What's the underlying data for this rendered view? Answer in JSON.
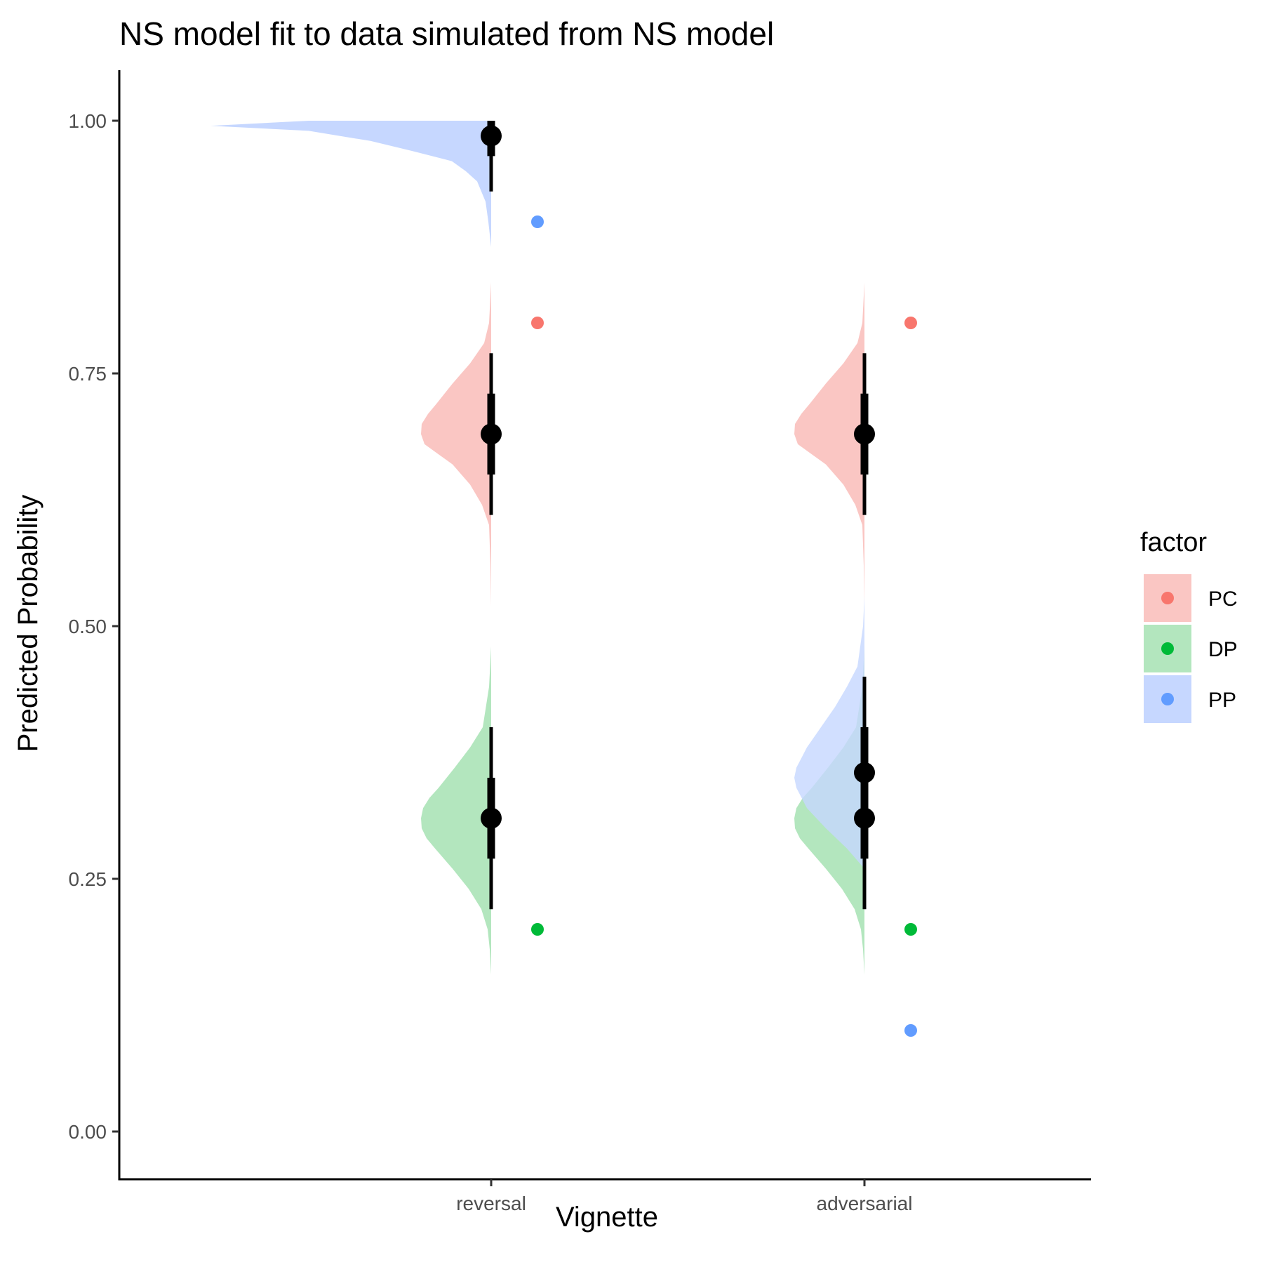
{
  "chart_data": {
    "type": "violin",
    "title": "NS model fit to data simulated from NS model",
    "xlabel": "Vignette",
    "ylabel": "Predicted Probability",
    "categories": [
      "reversal",
      "adversarial"
    ],
    "ylim": [
      -0.05,
      1.05
    ],
    "yticks": [
      0.0,
      0.25,
      0.5,
      0.75,
      1.0
    ],
    "ytick_labels": [
      "0.00",
      "0.25",
      "0.50",
      "0.75",
      "1.00"
    ],
    "grid": false,
    "legend": {
      "title": "factor",
      "position": "right",
      "entries": [
        "PC",
        "DP",
        "PP"
      ]
    },
    "series": [
      {
        "name": "PC",
        "point_color": "#F8766D",
        "fill_color": "#FAC6C3",
        "observed": [
          0.8,
          0.8
        ],
        "summary": [
          {
            "category": "reversal",
            "median": 0.69,
            "inner": [
              0.65,
              0.73
            ],
            "outer": [
              0.61,
              0.77
            ]
          },
          {
            "category": "adversarial",
            "median": 0.69,
            "inner": [
              0.65,
              0.73
            ],
            "outer": [
              0.61,
              0.77
            ]
          }
        ],
        "density": [
          {
            "category": "reversal",
            "y": [
              0.52,
              0.56,
              0.6,
              0.62,
              0.64,
              0.66,
              0.67,
              0.68,
              0.69,
              0.7,
              0.71,
              0.72,
              0.74,
              0.76,
              0.78,
              0.8,
              0.84
            ],
            "w": [
              0.0,
              0.01,
              0.03,
              0.13,
              0.3,
              0.55,
              0.75,
              0.95,
              1.0,
              0.99,
              0.9,
              0.78,
              0.55,
              0.3,
              0.1,
              0.03,
              0.0
            ]
          },
          {
            "category": "adversarial",
            "y": [
              0.52,
              0.56,
              0.6,
              0.62,
              0.64,
              0.66,
              0.67,
              0.68,
              0.69,
              0.7,
              0.71,
              0.72,
              0.74,
              0.76,
              0.78,
              0.8,
              0.84
            ],
            "w": [
              0.0,
              0.01,
              0.03,
              0.13,
              0.3,
              0.55,
              0.75,
              0.95,
              1.0,
              0.99,
              0.9,
              0.78,
              0.55,
              0.3,
              0.1,
              0.03,
              0.0
            ]
          }
        ]
      },
      {
        "name": "DP",
        "point_color": "#00BA38",
        "fill_color": "#B3E6BE",
        "observed": [
          0.2,
          0.2
        ],
        "summary": [
          {
            "category": "reversal",
            "median": 0.31,
            "inner": [
              0.27,
              0.35
            ],
            "outer": [
              0.22,
              0.4
            ]
          },
          {
            "category": "adversarial",
            "median": 0.31,
            "inner": [
              0.27,
              0.35
            ],
            "outer": [
              0.22,
              0.4
            ]
          }
        ],
        "density": [
          {
            "category": "reversal",
            "y": [
              0.155,
              0.18,
              0.2,
              0.22,
              0.24,
              0.26,
              0.28,
              0.29,
              0.3,
              0.31,
              0.32,
              0.33,
              0.34,
              0.36,
              0.38,
              0.4,
              0.44,
              0.48
            ],
            "w": [
              0.0,
              0.02,
              0.05,
              0.14,
              0.32,
              0.55,
              0.8,
              0.92,
              0.99,
              1.0,
              0.97,
              0.88,
              0.75,
              0.52,
              0.3,
              0.12,
              0.03,
              0.0
            ]
          },
          {
            "category": "adversarial",
            "y": [
              0.155,
              0.18,
              0.2,
              0.22,
              0.24,
              0.26,
              0.28,
              0.29,
              0.3,
              0.31,
              0.32,
              0.33,
              0.34,
              0.36,
              0.38,
              0.4,
              0.44,
              0.48
            ],
            "w": [
              0.0,
              0.02,
              0.05,
              0.14,
              0.32,
              0.55,
              0.8,
              0.92,
              0.99,
              1.0,
              0.97,
              0.88,
              0.75,
              0.52,
              0.3,
              0.12,
              0.03,
              0.0
            ]
          }
        ]
      },
      {
        "name": "PP",
        "point_color": "#619CFF",
        "fill_color": "#C6D7FF",
        "observed": [
          0.9,
          0.1
        ],
        "summary": [
          {
            "category": "reversal",
            "median": 0.985,
            "inner": [
              0.965,
              1.0
            ],
            "outer": [
              0.93,
              1.0
            ]
          },
          {
            "category": "adversarial",
            "median": 0.355,
            "inner": [
              0.31,
              0.4
            ],
            "outer": [
              0.27,
              0.45
            ]
          }
        ],
        "density": [
          {
            "category": "reversal",
            "y": [
              0.875,
              0.9,
              0.92,
              0.94,
              0.95,
              0.96,
              0.97,
              0.98,
              0.99,
              0.995,
              1.0
            ],
            "w": [
              0.0,
              0.01,
              0.02,
              0.05,
              0.09,
              0.14,
              0.28,
              0.43,
              0.65,
              1.0,
              0.65
            ]
          },
          {
            "category": "adversarial",
            "y": [
              0.26,
              0.28,
              0.3,
              0.32,
              0.34,
              0.35,
              0.36,
              0.38,
              0.4,
              0.42,
              0.44,
              0.46,
              0.5,
              0.53
            ],
            "w": [
              0.0,
              0.25,
              0.55,
              0.82,
              0.97,
              1.0,
              0.97,
              0.82,
              0.62,
              0.42,
              0.25,
              0.1,
              0.02,
              0.0
            ]
          }
        ]
      }
    ]
  }
}
